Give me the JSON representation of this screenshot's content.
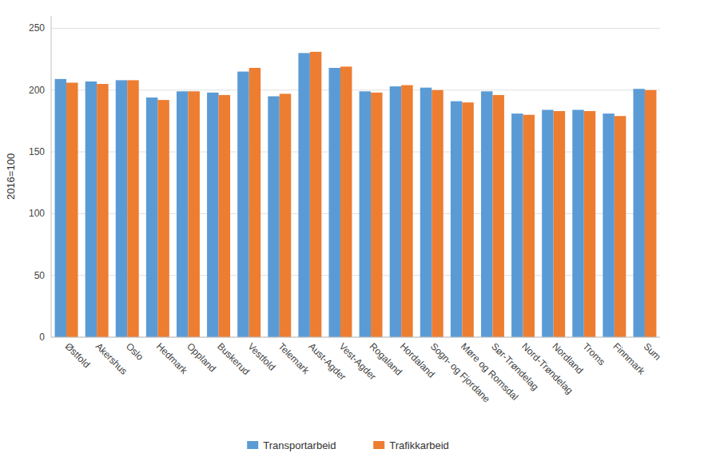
{
  "chart_data": {
    "type": "bar",
    "ylabel": "2016=100",
    "categories": [
      "Østfold",
      "Akershus",
      "Oslo",
      "Hedmark",
      "Oppland",
      "Buskerud",
      "Vestfold",
      "Telemark",
      "Aust-Agder",
      "Vest-Agder",
      "Rogaland",
      "Hordaland",
      "Sogn- og Fjordane",
      "Møre og Romsdal",
      "Sør-Trøndelag",
      "Nord-Trøndelag",
      "Nordland",
      "Troms",
      "Finnmark",
      "Sum"
    ],
    "series": [
      {
        "name": "Transportarbeid",
        "color": "#5B9BD5",
        "values": [
          209,
          207,
          208,
          194,
          199,
          198,
          215,
          195,
          230,
          218,
          199,
          203,
          202,
          191,
          199,
          181,
          184,
          184,
          181,
          201
        ]
      },
      {
        "name": "Trafikkarbeid",
        "color": "#ED7D31",
        "values": [
          206,
          205,
          208,
          192,
          199,
          196,
          218,
          197,
          231,
          219,
          198,
          204,
          200,
          190,
          196,
          180,
          183,
          183,
          179,
          200
        ]
      }
    ],
    "ylim": [
      0,
      260
    ],
    "yticks": [
      0,
      50,
      100,
      150,
      200,
      250
    ],
    "grid": true,
    "legend": "bottom"
  }
}
